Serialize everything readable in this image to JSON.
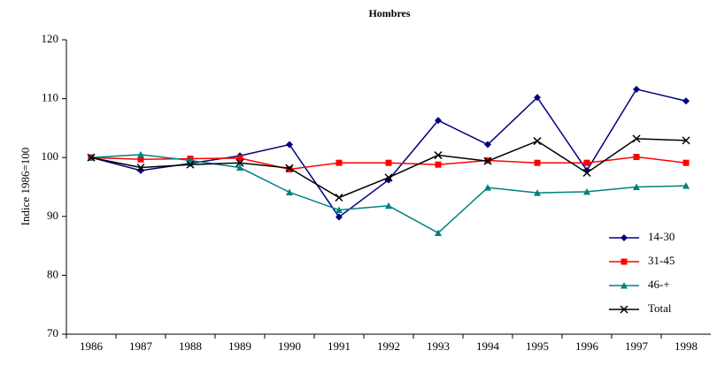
{
  "chart_data": {
    "type": "line",
    "title": "Hombres",
    "y_label": "Indice 1986=100",
    "categories": [
      "1986",
      "1987",
      "1988",
      "1989",
      "1990",
      "1991",
      "1992",
      "1993",
      "1994",
      "1995",
      "1996",
      "1997",
      "1998"
    ],
    "series": [
      {
        "name": "14-30",
        "color": "#000080",
        "marker": "diamond",
        "values": [
          100,
          97.8,
          99,
          100.3,
          102.2,
          89.9,
          96.2,
          106.3,
          102.2,
          110.2,
          97.8,
          111.6,
          109.6
        ]
      },
      {
        "name": "31-45",
        "color": "#ff0000",
        "marker": "square",
        "values": [
          100,
          99.7,
          99.8,
          99.9,
          98,
          99.1,
          99.1,
          98.8,
          99.5,
          99.1,
          99.1,
          100.1,
          99.1
        ]
      },
      {
        "name": "46-+",
        "color": "#008080",
        "marker": "triangle",
        "values": [
          100,
          100.5,
          99.5,
          98.3,
          94.1,
          91.1,
          91.8,
          87.2,
          94.9,
          94.0,
          94.2,
          95.0,
          95.2
        ]
      },
      {
        "name": "Total",
        "color": "#000000",
        "marker": "x",
        "values": [
          100,
          98.3,
          98.8,
          99.1,
          98.2,
          93.2,
          96.6,
          100.4,
          99.4,
          102.8,
          97.4,
          103.2,
          102.9
        ]
      }
    ],
    "ylim": [
      70,
      120
    ],
    "yticks": [
      70,
      80,
      90,
      100,
      110,
      120
    ],
    "legend": "lower right"
  }
}
